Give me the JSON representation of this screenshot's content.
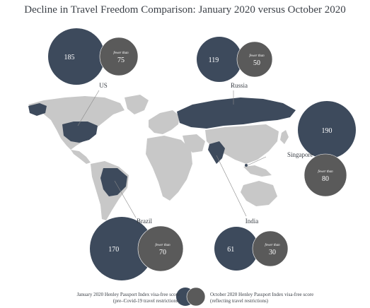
{
  "title": "Decline in Travel Freedom Comparison: January 2020 versus October 2020",
  "colors": {
    "jan": "#3d4a5c",
    "oct": "#5a5a5a",
    "highlight": "#3d4a5c",
    "land": "#c8c8c8",
    "leader": "#8a8a8a"
  },
  "fewer_label": "fewer than",
  "countries": [
    {
      "key": "us",
      "name": "US",
      "jan_score": "185",
      "oct_score": "75"
    },
    {
      "key": "russia",
      "name": "Russia",
      "jan_score": "119",
      "oct_score": "50"
    },
    {
      "key": "singapore",
      "name": "Singapore",
      "jan_score": "190",
      "oct_score": "80"
    },
    {
      "key": "brazil",
      "name": "Brazil",
      "jan_score": "170",
      "oct_score": "70"
    },
    {
      "key": "india",
      "name": "India",
      "jan_score": "61",
      "oct_score": "30"
    }
  ],
  "legend": {
    "jan_line1": "January 2020 Henley Passport Index visa-free score",
    "jan_line2": "(pre–Covid-19 travel restrictions)",
    "oct_line1": "October 2020 Henley Passport Index visa-free score",
    "oct_line2": "(reflecting travel restrictions)"
  }
}
